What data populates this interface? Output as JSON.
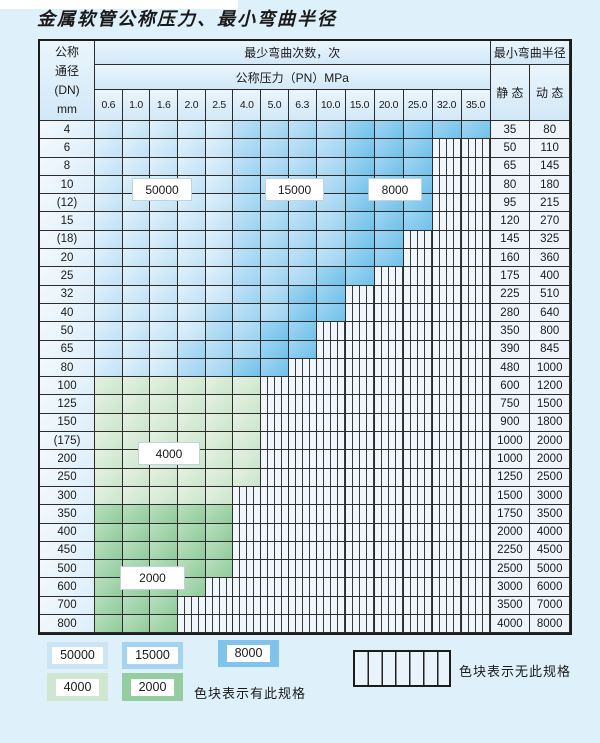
{
  "title": "金属软管公称压力、最小弯曲半径",
  "table": {
    "header": {
      "dn_lines": [
        "公称",
        "通径",
        "(DN)",
        "mm"
      ],
      "bend_cycles": "最少弯曲次数，次",
      "pressure": "公称压力（PN）MPa",
      "pressure_cols": [
        "0.6",
        "1.0",
        "1.6",
        "2.0",
        "2.5",
        "4.0",
        "5.0",
        "6.3",
        "10.0",
        "15.0",
        "20.0",
        "25.0",
        "32.0",
        "35.0"
      ],
      "min_radius": "最小弯曲半径",
      "static_label": "静 态",
      "dynamic_label": "动 态"
    },
    "rows": [
      {
        "dn": "4",
        "shade": "blue",
        "colored": 14,
        "light": 5,
        "med": 9,
        "static": "35",
        "dynamic": "80"
      },
      {
        "dn": "6",
        "shade": "blue",
        "colored": 12,
        "light": 5,
        "med": 9,
        "static": "50",
        "dynamic": "110"
      },
      {
        "dn": "8",
        "shade": "blue",
        "colored": 12,
        "light": 5,
        "med": 9,
        "static": "65",
        "dynamic": "145"
      },
      {
        "dn": "10",
        "shade": "blue",
        "colored": 12,
        "light": 5,
        "med": 9,
        "static": "80",
        "dynamic": "180"
      },
      {
        "dn": "(12)",
        "shade": "blue",
        "colored": 12,
        "light": 5,
        "med": 9,
        "static": "95",
        "dynamic": "215"
      },
      {
        "dn": "15",
        "shade": "blue",
        "colored": 12,
        "light": 5,
        "med": 9,
        "static": "120",
        "dynamic": "270"
      },
      {
        "dn": "(18)",
        "shade": "blue",
        "colored": 11,
        "light": 5,
        "med": 9,
        "static": "145",
        "dynamic": "325"
      },
      {
        "dn": "20",
        "shade": "blue",
        "colored": 11,
        "light": 5,
        "med": 9,
        "static": "160",
        "dynamic": "360"
      },
      {
        "dn": "25",
        "shade": "blue",
        "colored": 10,
        "light": 5,
        "med": 8,
        "static": "175",
        "dynamic": "400"
      },
      {
        "dn": "32",
        "shade": "blue",
        "colored": 9,
        "light": 5,
        "med": 7,
        "static": "225",
        "dynamic": "510"
      },
      {
        "dn": "40",
        "shade": "blue",
        "colored": 9,
        "light": 4,
        "med": 7,
        "static": "280",
        "dynamic": "640"
      },
      {
        "dn": "50",
        "shade": "blue",
        "colored": 8,
        "light": 4,
        "med": 6,
        "static": "350",
        "dynamic": "800"
      },
      {
        "dn": "65",
        "shade": "blue",
        "colored": 8,
        "light": 3,
        "med": 6,
        "static": "390",
        "dynamic": "845"
      },
      {
        "dn": "80",
        "shade": "blue",
        "colored": 7,
        "light": 3,
        "med": 5,
        "static": "480",
        "dynamic": "1000"
      },
      {
        "dn": "100",
        "shade": "green-light",
        "colored": 6,
        "static": "600",
        "dynamic": "1200"
      },
      {
        "dn": "125",
        "shade": "green-light",
        "colored": 6,
        "static": "750",
        "dynamic": "1500"
      },
      {
        "dn": "150",
        "shade": "green-light",
        "colored": 6,
        "static": "900",
        "dynamic": "1800"
      },
      {
        "dn": "(175)",
        "shade": "green-light",
        "colored": 6,
        "static": "1000",
        "dynamic": "2000"
      },
      {
        "dn": "200",
        "shade": "green-light",
        "colored": 6,
        "static": "1000",
        "dynamic": "2000"
      },
      {
        "dn": "250",
        "shade": "green-light",
        "colored": 6,
        "static": "1250",
        "dynamic": "2500"
      },
      {
        "dn": "300",
        "shade": "green-light",
        "colored": 5,
        "static": "1500",
        "dynamic": "3000"
      },
      {
        "dn": "350",
        "shade": "green-dark",
        "colored": 5,
        "static": "1750",
        "dynamic": "3500"
      },
      {
        "dn": "400",
        "shade": "green-dark",
        "colored": 5,
        "static": "2000",
        "dynamic": "4000"
      },
      {
        "dn": "450",
        "shade": "green-dark",
        "colored": 5,
        "static": "2250",
        "dynamic": "4500"
      },
      {
        "dn": "500",
        "shade": "green-dark",
        "colored": 5,
        "static": "2500",
        "dynamic": "5000"
      },
      {
        "dn": "600",
        "shade": "green-dark",
        "colored": 4,
        "static": "3000",
        "dynamic": "6000"
      },
      {
        "dn": "700",
        "shade": "green-dark",
        "colored": 3,
        "static": "3500",
        "dynamic": "7000"
      },
      {
        "dn": "800",
        "shade": "green-dark",
        "colored": 3,
        "static": "4000",
        "dynamic": "8000"
      }
    ]
  },
  "overlays": [
    {
      "label": "50000"
    },
    {
      "label": "15000"
    },
    {
      "label": "8000"
    },
    {
      "label": "4000"
    },
    {
      "label": "2000"
    }
  ],
  "legend": {
    "has_spec_items": [
      {
        "label": "50000",
        "color": "#cbe5f6"
      },
      {
        "label": "15000",
        "color": "#a5d4f1"
      },
      {
        "label": "8000",
        "color": "#7ec4ec"
      },
      {
        "label": "4000",
        "color": "#cfe7d1"
      },
      {
        "label": "2000",
        "color": "#94cda0"
      }
    ],
    "has_spec_text": "色块表示有此规格",
    "no_spec_text": "色块表示无此规格"
  },
  "colors": {
    "page_bg": "#def0fa",
    "blue_light": "#bfe1f5",
    "blue_medium": "#9bd2f0",
    "blue_dark": "#6fc0ea",
    "green_light": "#cbe5cb",
    "green_dark": "#8fcb9a",
    "grid_line": "#2c2c2c"
  }
}
